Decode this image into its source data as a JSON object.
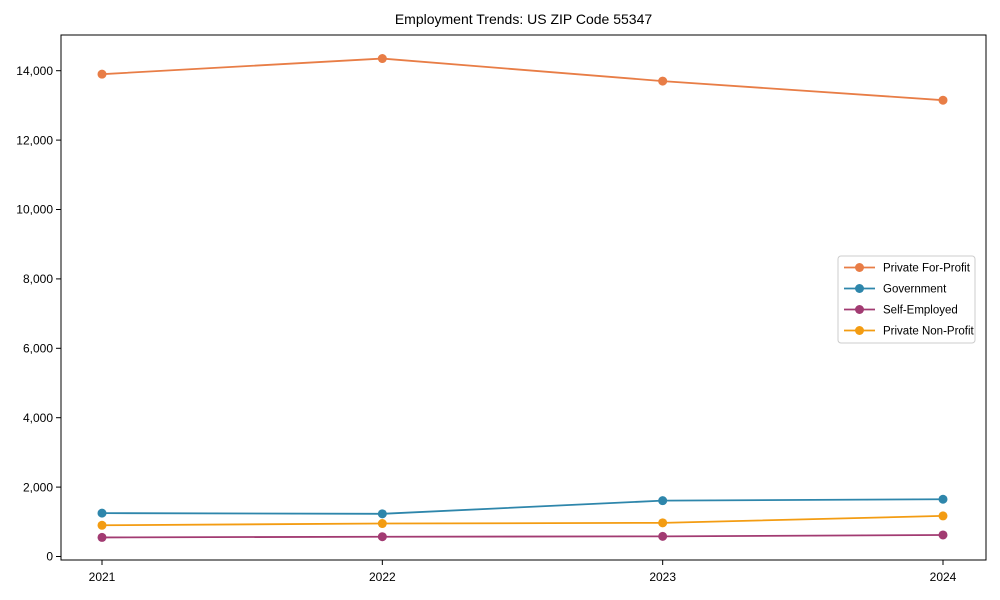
{
  "figure": {
    "background": "#ffffff",
    "axis_color": "#000000",
    "legend_border_color": "#cccccc",
    "legend_background": "#ffffff"
  },
  "chart_data": {
    "type": "line",
    "title": "Employment Trends: US ZIP Code 55347",
    "xlabel": "",
    "ylabel": "",
    "grid": false,
    "legend_position": "center-right",
    "x": [
      2021,
      2022,
      2023,
      2024
    ],
    "x_tick_labels": [
      "2021",
      "2022",
      "2023",
      "2024"
    ],
    "y_ticks": [
      0,
      2000,
      4000,
      6000,
      8000,
      10000,
      12000,
      14000
    ],
    "y_tick_labels": [
      "0",
      "2,000",
      "4,000",
      "6,000",
      "8,000",
      "10,000",
      "12,000",
      "14,000"
    ],
    "ylim": [
      -100,
      15030
    ],
    "marker": "circle",
    "series": [
      {
        "name": "Private For-Profit",
        "color": "#E87D46",
        "values": [
          13900,
          14350,
          13700,
          13150
        ]
      },
      {
        "name": "Government",
        "color": "#2E86AB",
        "values": [
          1250,
          1230,
          1610,
          1650
        ]
      },
      {
        "name": "Self-Employed",
        "color": "#A23B72",
        "values": [
          550,
          570,
          580,
          620
        ]
      },
      {
        "name": "Private Non-Profit",
        "color": "#F39C12",
        "values": [
          900,
          950,
          970,
          1170
        ]
      }
    ]
  }
}
